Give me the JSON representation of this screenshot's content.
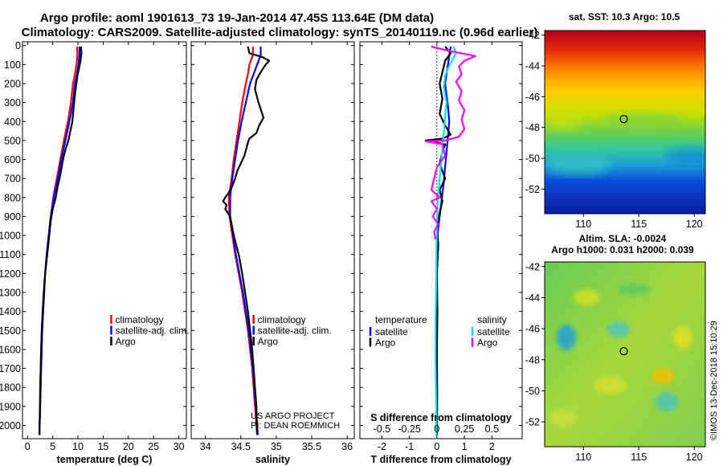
{
  "title": {
    "line1": "Argo profile: aoml 1901613_73 19-Jan-2014 47.45S 113.64E (DM data)",
    "line2": "Climatology: CARS2009. Satellite-adjusted climatology: synTS_20140119.nc (0.96d earlier)"
  },
  "credits": {
    "project": "US ARGO PROJECT",
    "pi": "PI: DEAN ROEMMICH",
    "imos": "©IMOS 13-Dec-2018 15:10:29"
  },
  "colors": {
    "climatology": "#ff0000",
    "satellite": "#0000ff",
    "argo": "#000000",
    "salinity_satellite": "#00e5ee",
    "salinity_argo": "#ff00ff"
  },
  "chart_data": [
    {
      "id": "temperature",
      "type": "line",
      "xlabel": "temperature (deg C)",
      "ylabel": "",
      "xlim": [
        -1,
        31.5
      ],
      "ylim": [
        2070,
        -20
      ],
      "y_reversed": true,
      "xticks": [
        0,
        5,
        10,
        15,
        20,
        25,
        30
      ],
      "yticks": [
        0,
        100,
        200,
        300,
        400,
        500,
        600,
        700,
        800,
        900,
        1000,
        1100,
        1200,
        1300,
        1400,
        1500,
        1600,
        1700,
        1800,
        1900,
        2000
      ],
      "legend": {
        "entries": [
          "climatology",
          "satellite-adj. clim.",
          "Argo"
        ],
        "position": "lower-right"
      },
      "series": [
        {
          "name": "climatology",
          "color": "#ff0000",
          "x": [
            9.8,
            9.9,
            9.7,
            9.4,
            9.0,
            8.6,
            8.0,
            7.2,
            6.5,
            5.8,
            5.1,
            4.6,
            4.2,
            3.8,
            3.5,
            3.3,
            3.1,
            2.9,
            2.8,
            2.7,
            2.6,
            2.5,
            2.45,
            2.4,
            2.35
          ],
          "y": [
            5,
            50,
            100,
            150,
            200,
            300,
            400,
            500,
            600,
            700,
            800,
            900,
            1000,
            1100,
            1200,
            1300,
            1400,
            1500,
            1600,
            1700,
            1800,
            1900,
            1950,
            2000,
            2050
          ]
        },
        {
          "name": "satellite-adj. clim.",
          "color": "#0000ff",
          "x": [
            10.3,
            10.3,
            10.1,
            9.8,
            9.4,
            9.0,
            8.3,
            7.5,
            6.7,
            6.0,
            5.2,
            4.6,
            4.2,
            3.8,
            3.5,
            3.3,
            3.1,
            2.9,
            2.8,
            2.7,
            2.6,
            2.5,
            2.45,
            2.4,
            2.35
          ],
          "y": [
            5,
            50,
            100,
            150,
            200,
            300,
            400,
            500,
            600,
            700,
            800,
            900,
            1000,
            1100,
            1200,
            1300,
            1400,
            1500,
            1600,
            1700,
            1800,
            1900,
            1950,
            2000,
            2050
          ]
        },
        {
          "name": "Argo",
          "color": "#000000",
          "x": [
            10.6,
            10.7,
            10.5,
            10.2,
            9.9,
            9.6,
            9.3,
            9.1,
            8.9,
            8.5,
            8.1,
            7.6,
            7.2,
            6.9,
            6.5,
            6.0,
            5.6,
            5.0,
            4.6,
            4.3,
            3.9,
            3.5,
            3.2,
            3.0,
            2.8,
            2.7,
            2.6,
            2.5,
            2.45,
            2.4,
            2.35
          ],
          "y": [
            5,
            40,
            80,
            120,
            160,
            220,
            280,
            340,
            400,
            450,
            500,
            540,
            580,
            620,
            680,
            740,
            800,
            860,
            920,
            1000,
            1100,
            1200,
            1300,
            1400,
            1500,
            1600,
            1700,
            1800,
            1900,
            2000,
            2050
          ]
        }
      ]
    },
    {
      "id": "salinity",
      "type": "line",
      "xlabel": "salinity",
      "ylabel": "",
      "xlim": [
        33.8,
        36.1
      ],
      "ylim": [
        2070,
        -20
      ],
      "y_reversed": true,
      "xticks": [
        34,
        34.5,
        35,
        35.5,
        36
      ],
      "xticklabels": [
        "34",
        "34.5",
        "35",
        "35.5",
        "36"
      ],
      "legend": {
        "entries": [
          "climatology",
          "satellite-adj. clim.",
          "Argo"
        ],
        "position": "lower-right"
      },
      "series": [
        {
          "name": "climatology",
          "color": "#ff0000",
          "x": [
            34.67,
            34.67,
            34.62,
            34.6,
            34.57,
            34.52,
            34.48,
            34.44,
            34.4,
            34.37,
            34.33,
            34.34,
            34.38,
            34.42,
            34.47,
            34.52,
            34.56,
            34.6,
            34.63,
            34.66,
            34.68,
            34.7,
            34.72,
            34.73
          ],
          "y": [
            5,
            50,
            100,
            150,
            200,
            300,
            400,
            500,
            600,
            700,
            800,
            900,
            1000,
            1100,
            1200,
            1300,
            1400,
            1500,
            1600,
            1700,
            1800,
            1900,
            2000,
            2050
          ]
        },
        {
          "name": "satellite-adj. clim.",
          "color": "#0000ff",
          "x": [
            34.78,
            34.78,
            34.73,
            34.68,
            34.63,
            34.57,
            34.51,
            34.46,
            34.42,
            34.38,
            34.35,
            34.35,
            34.39,
            34.43,
            34.48,
            34.53,
            34.57,
            34.61,
            34.64,
            34.67,
            34.69,
            34.71,
            34.73,
            34.74
          ],
          "y": [
            5,
            50,
            100,
            150,
            200,
            300,
            400,
            500,
            600,
            700,
            800,
            900,
            1000,
            1100,
            1200,
            1300,
            1400,
            1500,
            1600,
            1700,
            1800,
            1900,
            2000,
            2050
          ]
        },
        {
          "name": "Argo",
          "color": "#000000",
          "x": [
            34.6,
            34.62,
            34.8,
            34.9,
            34.85,
            34.78,
            34.72,
            34.7,
            34.75,
            34.82,
            34.76,
            34.72,
            34.62,
            34.6,
            34.58,
            34.55,
            34.5,
            34.45,
            34.42,
            34.38,
            34.32,
            34.28,
            34.25,
            34.3,
            34.28,
            34.35,
            34.4,
            34.47,
            34.52,
            34.56,
            34.6,
            34.63,
            34.66,
            34.68,
            34.7,
            34.72,
            34.73
          ],
          "y": [
            5,
            40,
            60,
            80,
            100,
            140,
            180,
            230,
            300,
            380,
            420,
            460,
            490,
            510,
            540,
            580,
            620,
            660,
            700,
            740,
            780,
            800,
            820,
            840,
            860,
            900,
            1000,
            1100,
            1200,
            1300,
            1400,
            1500,
            1600,
            1700,
            1800,
            1900,
            2050
          ]
        }
      ]
    },
    {
      "id": "difference",
      "type": "line",
      "xlabel": "T difference from climatology",
      "xlabel2": "S difference from climatology",
      "ylabel": "",
      "xlim": [
        -2.8,
        3.1
      ],
      "ylim": [
        2070,
        -20
      ],
      "y_reversed": true,
      "xticks": [
        -2,
        -1,
        0,
        1,
        2
      ],
      "xticks2": [
        -0.5,
        -0.25,
        0,
        0.25,
        0.5
      ],
      "xticklabels2": [
        "-0.5",
        "-0.25",
        "0",
        "0.25",
        "0.5"
      ],
      "legend": {
        "group1_title": "temperature",
        "group2_title": "salinity",
        "entries1": [
          "satellite",
          "Argo"
        ],
        "entries2": [
          "satellite",
          "Argo"
        ],
        "position": "lower"
      },
      "series": [
        {
          "name": "temperature satellite",
          "color": "#0000ff",
          "x": [
            0.5,
            0.45,
            0.4,
            0.35,
            0.3,
            0.35,
            0.4,
            0.45,
            0.4,
            0.35,
            0.3,
            0.25,
            0.2,
            0.15,
            0.1,
            0.05,
            0.02,
            0,
            0,
            0,
            0,
            0,
            0,
            0
          ],
          "y": [
            5,
            50,
            100,
            150,
            200,
            260,
            320,
            400,
            480,
            560,
            640,
            720,
            780,
            840,
            900,
            960,
            1000,
            1100,
            1300,
            1500,
            1700,
            1850,
            1950,
            2050
          ]
        },
        {
          "name": "temperature Argo",
          "color": "#000000",
          "x": [
            0.3,
            0.5,
            0.3,
            0.2,
            0.1,
            0.2,
            0.1,
            0.3,
            0.5,
            0.2,
            -0.4,
            0.3,
            0.2,
            0.1,
            0.3,
            0.1,
            0.2,
            0.1,
            0,
            0.05,
            0,
            0.02,
            0,
            0.01,
            0
          ],
          "y": [
            5,
            40,
            80,
            140,
            200,
            280,
            360,
            420,
            470,
            490,
            500,
            520,
            560,
            620,
            700,
            760,
            820,
            880,
            950,
            1050,
            1200,
            1400,
            1600,
            1850,
            2050
          ]
        },
        {
          "name": "salinity satellite",
          "color": "#00e5ee",
          "x": [
            0.6,
            0.7,
            0.55,
            0.4,
            0.3,
            0.25,
            0.35,
            0.3,
            0.25,
            0.2,
            0.15,
            0.1,
            0.05,
            0.02,
            0,
            -0.02,
            -0.03,
            -0.05,
            -0.05,
            -0.05,
            -0.04,
            -0.03,
            -0.02,
            -0.02
          ],
          "y": [
            5,
            40,
            80,
            120,
            160,
            220,
            300,
            380,
            460,
            540,
            620,
            700,
            780,
            860,
            950,
            1100,
            1300,
            1450,
            1550,
            1650,
            1750,
            1850,
            1950,
            2050
          ]
        },
        {
          "name": "salinity Argo",
          "color": "#ff00ff",
          "x": [
            -0.2,
            0.5,
            1.4,
            1.0,
            0.8,
            0.9,
            0.7,
            0.9,
            0.8,
            1.0,
            0.9,
            1.0,
            0.8,
            0.3,
            -0.4,
            0.2,
            0.3,
            0.0,
            -0.1,
            -0.2,
            0.1,
            -0.2,
            0.0,
            -0.15,
            0.05,
            -0.1,
            -0.05
          ],
          "y": [
            5,
            30,
            55,
            80,
            110,
            150,
            190,
            240,
            290,
            340,
            390,
            440,
            480,
            500,
            505,
            520,
            580,
            640,
            700,
            760,
            800,
            820,
            860,
            900,
            940,
            980,
            1020
          ]
        }
      ]
    },
    {
      "id": "sst-map",
      "type": "heatmap",
      "title": "sat. SST: 10.3 Argo: 10.5",
      "xlim": [
        106.5,
        121
      ],
      "ylim": [
        -53.6,
        -41.7
      ],
      "xticks": [
        110,
        115,
        120
      ],
      "yticks": [
        -42,
        -44,
        -46,
        -48,
        -50,
        -52
      ],
      "marker": {
        "lon": 113.64,
        "lat": -47.45,
        "shape": "circle"
      }
    },
    {
      "id": "sla-map",
      "type": "heatmap",
      "title_line1": "Altim. SLA: -0.0024",
      "title_line2": "Argo h1000: 0.031 h2000: 0.039",
      "xlim": [
        106.5,
        121
      ],
      "ylim": [
        -53.6,
        -41.7
      ],
      "xticks": [
        110,
        115,
        120
      ],
      "yticks": [
        -42,
        -44,
        -46,
        -48,
        -50,
        -52
      ],
      "marker": {
        "lon": 113.64,
        "lat": -47.45,
        "shape": "circle"
      }
    }
  ]
}
